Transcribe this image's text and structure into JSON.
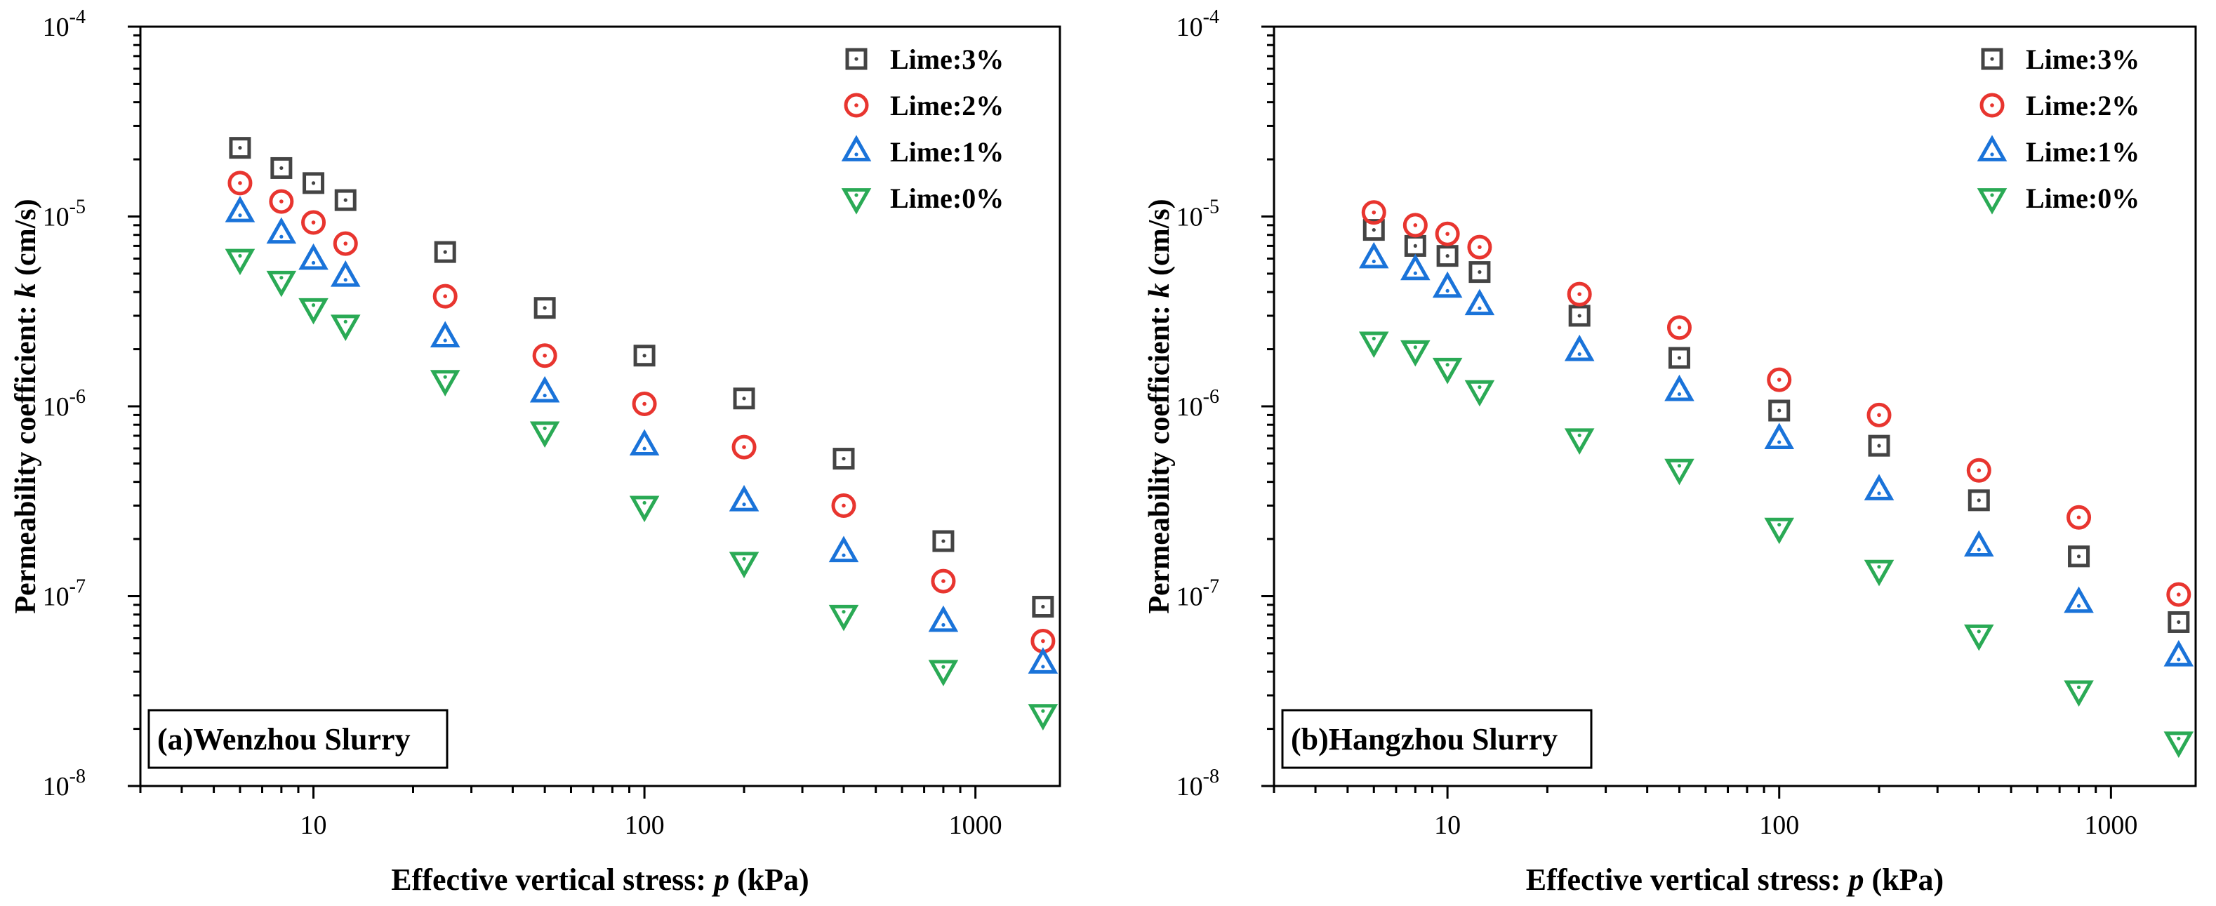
{
  "chart_data": [
    {
      "type": "scatter",
      "panel_label": "(a)Wenzhou Slurry",
      "xlabel_prefix": "Effective vertical stress: ",
      "xlabel_var": "p",
      "xlabel_unit": " (kPa)",
      "ylabel_prefix": "Permeability coefficient: ",
      "ylabel_var": "k",
      "ylabel_unit": " (cm/s)",
      "xscale": "log",
      "yscale": "log",
      "xlim": [
        3,
        1800
      ],
      "ylim": [
        1e-08,
        0.0001
      ],
      "x_ticks": [
        {
          "value": 10,
          "label": "10"
        },
        {
          "value": 100,
          "label": "100"
        },
        {
          "value": 1000,
          "label": "1000"
        }
      ],
      "y_ticks": [
        {
          "exp": -8,
          "base": "10",
          "sup": "-8"
        },
        {
          "exp": -7,
          "base": "10",
          "sup": "-7"
        },
        {
          "exp": -6,
          "base": "10",
          "sup": "-6"
        },
        {
          "exp": -5,
          "base": "10",
          "sup": "-5"
        },
        {
          "exp": -4,
          "base": "10",
          "sup": "-4"
        }
      ],
      "legend_position": "top-right",
      "x": [
        6,
        8,
        10,
        12.5,
        25,
        50,
        100,
        200,
        400,
        800,
        1600
      ],
      "series": [
        {
          "name": "Lime:3%",
          "marker": "square",
          "color": "#444444",
          "values": [
            2.3e-05,
            1.8e-05,
            1.5e-05,
            1.22e-05,
            6.5e-06,
            3.3e-06,
            1.85e-06,
            1.1e-06,
            5.3e-07,
            1.95e-07,
            8.8e-08
          ]
        },
        {
          "name": "Lime:2%",
          "marker": "circle",
          "color": "#e8352f",
          "values": [
            1.5e-05,
            1.2e-05,
            9.3e-06,
            7.2e-06,
            3.8e-06,
            1.85e-06,
            1.03e-06,
            6.1e-07,
            3e-07,
            1.2e-07,
            5.8e-08
          ]
        },
        {
          "name": "Lime:1%",
          "marker": "triangle-up",
          "color": "#1a73d9",
          "values": [
            1.05e-05,
            8.1e-06,
            5.9e-06,
            4.8e-06,
            2.3e-06,
            1.18e-06,
            6.2e-07,
            3.15e-07,
            1.7e-07,
            7.3e-08,
            4.4e-08
          ]
        },
        {
          "name": "Lime:0%",
          "marker": "triangle-down",
          "color": "#2aaa55",
          "values": [
            6e-06,
            4.6e-06,
            3.3e-06,
            2.7e-06,
            1.38e-06,
            7.4e-07,
            3e-07,
            1.52e-07,
            8e-08,
            4.1e-08,
            2.4e-08
          ]
        }
      ]
    },
    {
      "type": "scatter",
      "panel_label": "(b)Hangzhou Slurry",
      "xlabel_prefix": "Effective vertical stress: ",
      "xlabel_var": "p",
      "xlabel_unit": " (kPa)",
      "ylabel_prefix": "Permeability coefficient: ",
      "ylabel_var": "k",
      "ylabel_unit": " (cm/s)",
      "xscale": "log",
      "yscale": "log",
      "xlim": [
        3,
        1800
      ],
      "ylim": [
        1e-08,
        0.0001
      ],
      "x_ticks": [
        {
          "value": 10,
          "label": "10"
        },
        {
          "value": 100,
          "label": "100"
        },
        {
          "value": 1000,
          "label": "1000"
        }
      ],
      "y_ticks": [
        {
          "exp": -8,
          "base": "10",
          "sup": "-8"
        },
        {
          "exp": -7,
          "base": "10",
          "sup": "-7"
        },
        {
          "exp": -6,
          "base": "10",
          "sup": "-6"
        },
        {
          "exp": -5,
          "base": "10",
          "sup": "-5"
        },
        {
          "exp": -4,
          "base": "10",
          "sup": "-4"
        }
      ],
      "legend_position": "top-right",
      "x": [
        6,
        8,
        10,
        12.5,
        25,
        50,
        100,
        200,
        400,
        800,
        1600
      ],
      "series": [
        {
          "name": "Lime:3%",
          "marker": "square",
          "color": "#444444",
          "values": [
            8.5e-06,
            7e-06,
            6.2e-06,
            5.1e-06,
            3e-06,
            1.8e-06,
            9.5e-07,
            6.2e-07,
            3.2e-07,
            1.62e-07,
            7.3e-08
          ]
        },
        {
          "name": "Lime:2%",
          "marker": "circle",
          "color": "#e8352f",
          "values": [
            1.05e-05,
            9e-06,
            8.1e-06,
            6.9e-06,
            3.9e-06,
            2.6e-06,
            1.38e-06,
            9e-07,
            4.6e-07,
            2.6e-07,
            1.02e-07
          ]
        },
        {
          "name": "Lime:1%",
          "marker": "triangle-up",
          "color": "#1a73d9",
          "values": [
            6e-06,
            5.2e-06,
            4.2e-06,
            3.4e-06,
            1.95e-06,
            1.2e-06,
            6.7e-07,
            3.6e-07,
            1.82e-07,
            9.2e-08,
            4.8e-08
          ]
        },
        {
          "name": "Lime:0%",
          "marker": "triangle-down",
          "color": "#2aaa55",
          "values": [
            2.2e-06,
            1.98e-06,
            1.6e-06,
            1.22e-06,
            6.8e-07,
            4.7e-07,
            2.3e-07,
            1.38e-07,
            6.3e-08,
            3.2e-08,
            1.72e-08
          ]
        }
      ]
    }
  ]
}
